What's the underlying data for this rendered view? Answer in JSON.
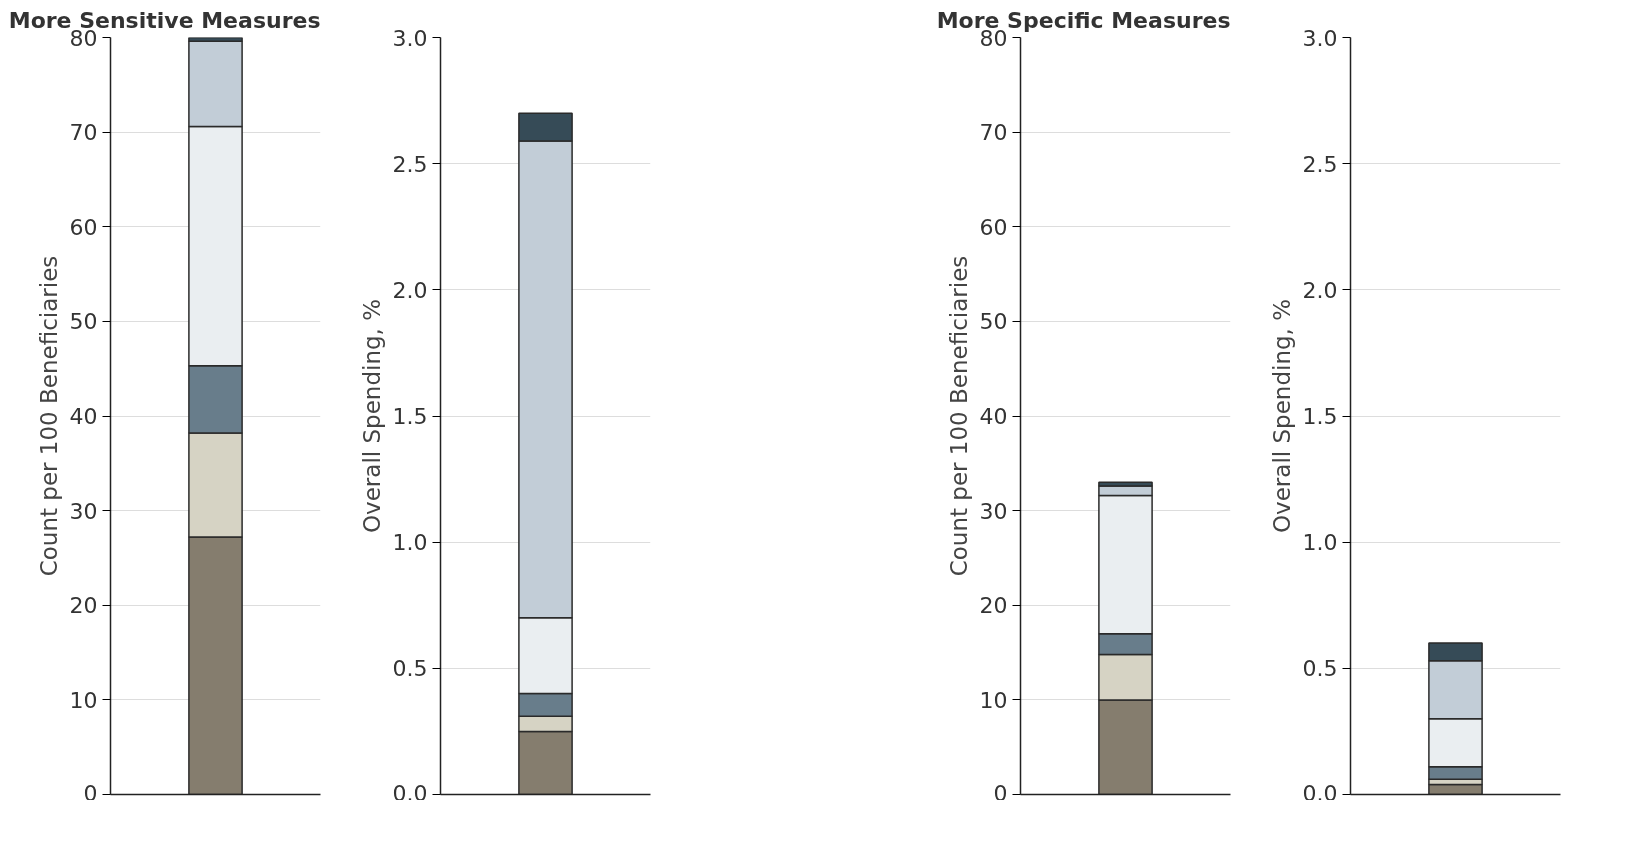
{
  "chart_data": [
    {
      "type": "bar",
      "title": "More Sensitive Measures",
      "ylabel": "Count per 100 Beneficiaries",
      "categories": [
        null
      ],
      "stacked": true,
      "ylim": [
        0,
        80
      ],
      "yticks": [
        0,
        10,
        20,
        30,
        40,
        50,
        60,
        70,
        80
      ],
      "grid": "y",
      "tick_labels": "y",
      "series": [
        {
          "color": "#857d6e",
          "values": [
            27.2
          ]
        },
        {
          "color": "#d6d3c4",
          "values": [
            11
          ]
        },
        {
          "color": "#687d8b",
          "values": [
            7.1
          ]
        },
        {
          "color": "#eaeef1",
          "values": [
            25.3
          ]
        },
        {
          "color": "#c2cdd7",
          "values": [
            9
          ]
        },
        {
          "color": "#364b57",
          "values": [
            0.4
          ]
        }
      ]
    },
    {
      "type": "bar",
      "ylabel": "Overall Spending, %",
      "categories": [
        null
      ],
      "stacked": true,
      "ylim": [
        0,
        3
      ],
      "yticks": [
        {
          "value": 0,
          "label": "0.0"
        },
        {
          "value": 0.5,
          "label": "0.5"
        },
        {
          "value": 1,
          "label": "1.0"
        },
        {
          "value": 1.5,
          "label": "1.5"
        },
        {
          "value": 2,
          "label": "2.0"
        },
        {
          "value": 2.5,
          "label": "2.5"
        },
        {
          "value": 3,
          "label": "3.0"
        }
      ],
      "grid": "y",
      "tick_labels": "y",
      "series": [
        {
          "color": "#857d6e",
          "values": [
            0.25
          ]
        },
        {
          "color": "#d6d3c4",
          "values": [
            0.06
          ]
        },
        {
          "color": "#687d8b",
          "values": [
            0.09
          ]
        },
        {
          "color": "#eaeef1",
          "values": [
            0.3
          ]
        },
        {
          "color": "#c2cdd7",
          "values": [
            1.89
          ]
        },
        {
          "color": "#364b57",
          "values": [
            0.11
          ]
        }
      ]
    },
    {
      "type": "bar",
      "title": "More Specific Measures",
      "ylabel": "Count per 100 Beneficiaries",
      "categories": [
        null
      ],
      "stacked": true,
      "ylim": [
        0,
        80
      ],
      "yticks": [
        0,
        10,
        20,
        30,
        40,
        50,
        60,
        70,
        80
      ],
      "grid": "y",
      "tick_labels": "y",
      "series": [
        {
          "color": "#857d6e",
          "values": [
            10
          ]
        },
        {
          "color": "#d6d3c4",
          "values": [
            4.8
          ]
        },
        {
          "color": "#687d8b",
          "values": [
            2.2
          ]
        },
        {
          "color": "#eaeef1",
          "values": [
            14.6
          ]
        },
        {
          "color": "#c2cdd7",
          "values": [
            1
          ]
        },
        {
          "color": "#364b57",
          "values": [
            0.4
          ]
        }
      ]
    },
    {
      "type": "bar",
      "ylabel": "Overall Spending, %",
      "categories": [
        null
      ],
      "stacked": true,
      "ylim": [
        0,
        3
      ],
      "yticks": [
        {
          "value": 0,
          "label": "0.0"
        },
        {
          "value": 0.5,
          "label": "0.5"
        },
        {
          "value": 1,
          "label": "1.0"
        },
        {
          "value": 1.5,
          "label": "1.5"
        },
        {
          "value": 2,
          "label": "2.0"
        },
        {
          "value": 2.5,
          "label": "2.5"
        },
        {
          "value": 3,
          "label": "3.0"
        }
      ],
      "grid": "y",
      "tick_labels": "y",
      "series": [
        {
          "color": "#857d6e",
          "values": [
            0.04
          ]
        },
        {
          "color": "#d6d3c4",
          "values": [
            0.02
          ]
        },
        {
          "color": "#687d8b",
          "values": [
            0.05
          ]
        },
        {
          "color": "#eaeef1",
          "values": [
            0.19
          ]
        },
        {
          "color": "#c2cdd7",
          "values": [
            0.23
          ]
        },
        {
          "color": "#364b57",
          "values": [
            0.07
          ]
        }
      ]
    }
  ]
}
